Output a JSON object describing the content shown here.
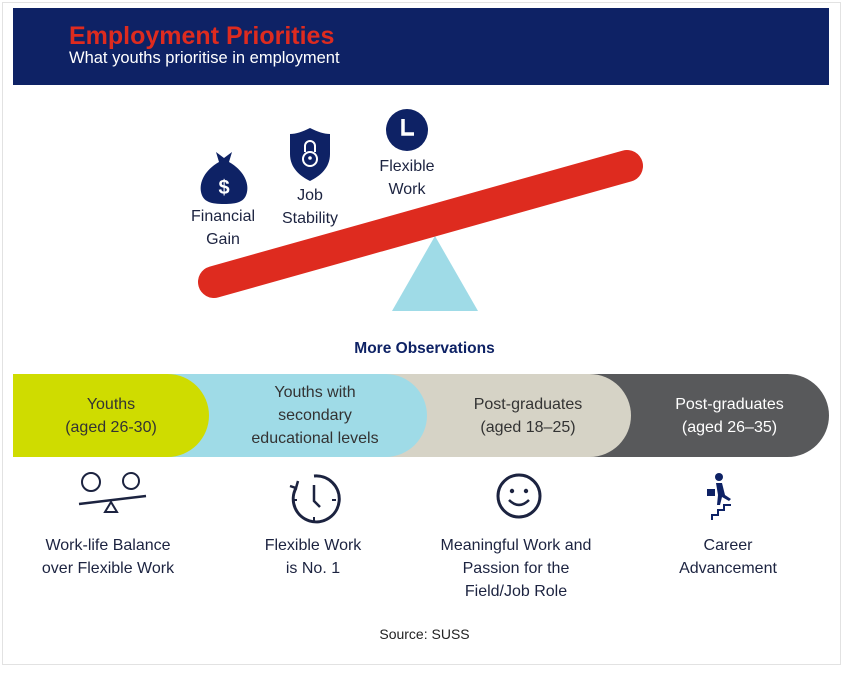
{
  "header": {
    "title": "Employment Priorities",
    "subtitle": "What youths prioritise in employment"
  },
  "priorities": [
    {
      "label_1": "Financial",
      "label_2": "Gain",
      "icon": "money-bag-icon"
    },
    {
      "label_1": "Job",
      "label_2": "Stability",
      "icon": "shield-lock-icon"
    },
    {
      "label_1": "Flexible",
      "label_2": "Work",
      "icon": "clock-icon"
    }
  ],
  "observations_title": "More Observations",
  "groups": [
    {
      "line_1": "Youths",
      "line_2": "(aged 26-30)",
      "line_3": "",
      "color": "#cfdc00",
      "text_color": "#333333"
    },
    {
      "line_1": "Youths with",
      "line_2": "secondary",
      "line_3": "educational levels",
      "color": "#9fdbe7",
      "text_color": "#333333"
    },
    {
      "line_1": "Post-graduates",
      "line_2": "(aged 18–25)",
      "line_3": "",
      "color": "#d6d3c6",
      "text_color": "#333333"
    },
    {
      "line_1": "Post-graduates",
      "line_2": "(aged 26–35)",
      "line_3": "",
      "color": "#58595b",
      "text_color": "#ffffff"
    }
  ],
  "findings": [
    {
      "line_1": "Work-life Balance",
      "line_2": "over Flexible Work",
      "line_3": "",
      "icon": "balance-icon"
    },
    {
      "line_1": "Flexible Work",
      "line_2": "is No. 1",
      "line_3": "",
      "icon": "clock-rotate-icon"
    },
    {
      "line_1": "Meaningful Work and",
      "line_2": "Passion for the",
      "line_3": "Field/Job Role",
      "icon": "smiley-icon"
    },
    {
      "line_1": "Career",
      "line_2": "Advancement",
      "line_3": "",
      "icon": "climbing-stairs-icon"
    }
  ],
  "source": "Source: SUSS",
  "colors": {
    "navy": "#0e2265",
    "red": "#de2b1f",
    "triangle": "#9fdbe7"
  }
}
